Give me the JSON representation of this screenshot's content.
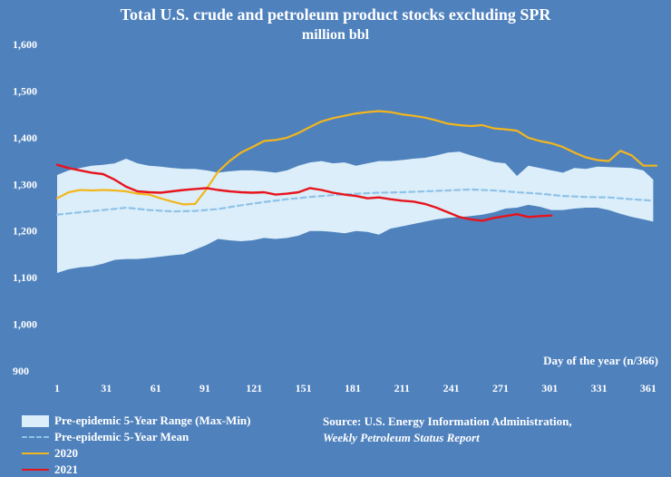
{
  "colors": {
    "background": "#4f81bd",
    "range": "#dbeef9",
    "mean": "#8fc2e8",
    "y2020": "#f2b61d",
    "y2021": "#e8141c",
    "text": "#ffffff"
  },
  "chart_data": {
    "type": "line",
    "title": "Total U.S. crude and petroleum product stocks excluding SPR",
    "subtitle": "million bbl",
    "xlabel": "Day of the year (n/366)",
    "ylabel": "",
    "xlim": [
      1,
      366
    ],
    "ylim": [
      900,
      1600
    ],
    "x_ticks": [
      "1",
      "31",
      "61",
      "91",
      "121",
      "151",
      "181",
      "211",
      "241",
      "271",
      "301",
      "331",
      "361"
    ],
    "y_ticks": [
      "900",
      "1,000",
      "1,100",
      "1,200",
      "1,300",
      "1,400",
      "1,500",
      "1,600"
    ],
    "series": [
      {
        "name": "Pre-epidemic 5-Year Range (Max-Min)",
        "kind": "range",
        "x": [
          1,
          8,
          15,
          22,
          29,
          36,
          43,
          50,
          57,
          64,
          71,
          78,
          85,
          92,
          99,
          106,
          113,
          120,
          127,
          134,
          141,
          148,
          155,
          162,
          169,
          176,
          183,
          190,
          197,
          204,
          211,
          218,
          225,
          232,
          239,
          246,
          253,
          260,
          267,
          274,
          281,
          288,
          295,
          302,
          309,
          316,
          323,
          330,
          337,
          344,
          351,
          358,
          364
        ],
        "max": [
          1320,
          1330,
          1335,
          1340,
          1342,
          1345,
          1355,
          1345,
          1340,
          1338,
          1335,
          1333,
          1333,
          1330,
          1325,
          1328,
          1330,
          1330,
          1328,
          1325,
          1330,
          1340,
          1347,
          1350,
          1345,
          1347,
          1340,
          1345,
          1350,
          1350,
          1352,
          1355,
          1357,
          1362,
          1368,
          1370,
          1362,
          1355,
          1348,
          1345,
          1318,
          1340,
          1335,
          1330,
          1325,
          1335,
          1333,
          1338,
          1337,
          1336,
          1335,
          1330,
          1310
        ],
        "min": [
          1110,
          1118,
          1122,
          1124,
          1130,
          1138,
          1140,
          1140,
          1142,
          1145,
          1148,
          1150,
          1160,
          1170,
          1183,
          1180,
          1178,
          1180,
          1185,
          1183,
          1185,
          1190,
          1200,
          1200,
          1198,
          1195,
          1200,
          1198,
          1192,
          1205,
          1210,
          1215,
          1220,
          1225,
          1228,
          1230,
          1232,
          1235,
          1240,
          1248,
          1250,
          1256,
          1252,
          1245,
          1245,
          1248,
          1250,
          1250,
          1245,
          1237,
          1230,
          1225,
          1220
        ]
      },
      {
        "name": "Pre-epidemic 5-Year Mean",
        "kind": "dashed",
        "x": [
          1,
          15,
          29,
          43,
          57,
          71,
          85,
          99,
          113,
          127,
          141,
          155,
          169,
          183,
          197,
          211,
          225,
          239,
          253,
          267,
          281,
          295,
          309,
          323,
          337,
          351,
          364
        ],
        "y": [
          1235,
          1240,
          1245,
          1250,
          1245,
          1242,
          1243,
          1247,
          1255,
          1262,
          1268,
          1273,
          1277,
          1280,
          1282,
          1283,
          1285,
          1287,
          1289,
          1287,
          1283,
          1280,
          1275,
          1273,
          1272,
          1268,
          1265
        ]
      },
      {
        "name": "2020",
        "kind": "line",
        "x": [
          1,
          8,
          15,
          22,
          29,
          36,
          43,
          50,
          57,
          64,
          71,
          78,
          85,
          92,
          99,
          106,
          113,
          120,
          127,
          134,
          141,
          148,
          155,
          162,
          169,
          176,
          183,
          190,
          197,
          204,
          211,
          218,
          225,
          232,
          239,
          246,
          253,
          260,
          267,
          274,
          281,
          288,
          295,
          302,
          309,
          316,
          323,
          330,
          337,
          344,
          351,
          358,
          366
        ],
        "y": [
          1270,
          1283,
          1288,
          1287,
          1288,
          1287,
          1285,
          1280,
          1278,
          1270,
          1263,
          1257,
          1258,
          1290,
          1327,
          1350,
          1368,
          1380,
          1393,
          1395,
          1400,
          1410,
          1423,
          1435,
          1442,
          1447,
          1452,
          1455,
          1457,
          1455,
          1450,
          1447,
          1443,
          1437,
          1430,
          1427,
          1425,
          1427,
          1420,
          1418,
          1415,
          1400,
          1393,
          1388,
          1380,
          1368,
          1358,
          1352,
          1350,
          1372,
          1362,
          1340,
          1340
        ]
      },
      {
        "name": "2021",
        "kind": "line",
        "x": [
          1,
          8,
          15,
          22,
          29,
          36,
          43,
          50,
          57,
          64,
          71,
          78,
          85,
          92,
          99,
          106,
          113,
          120,
          127,
          134,
          141,
          148,
          155,
          162,
          169,
          176,
          183,
          190,
          197,
          204,
          211,
          218,
          225,
          232,
          239,
          246,
          253,
          260,
          267,
          274,
          281,
          288,
          295,
          302
        ],
        "y": [
          1342,
          1335,
          1330,
          1325,
          1322,
          1310,
          1295,
          1285,
          1283,
          1282,
          1285,
          1288,
          1290,
          1292,
          1288,
          1285,
          1283,
          1282,
          1283,
          1278,
          1280,
          1283,
          1292,
          1288,
          1282,
          1278,
          1275,
          1270,
          1272,
          1268,
          1265,
          1263,
          1258,
          1250,
          1240,
          1230,
          1225,
          1222,
          1228,
          1232,
          1236,
          1230,
          1232,
          1233
        ]
      }
    ]
  },
  "legend": {
    "range_label": "Pre-epidemic 5-Year Range (Max-Min)",
    "mean_label": "Pre-epidemic 5-Year Mean",
    "y2020_label": "2020",
    "y2021_label": "2021"
  },
  "source": {
    "line1": "Source: U.S. Energy Information Administration,",
    "line2": "Weekly Petroleum Status Report"
  }
}
